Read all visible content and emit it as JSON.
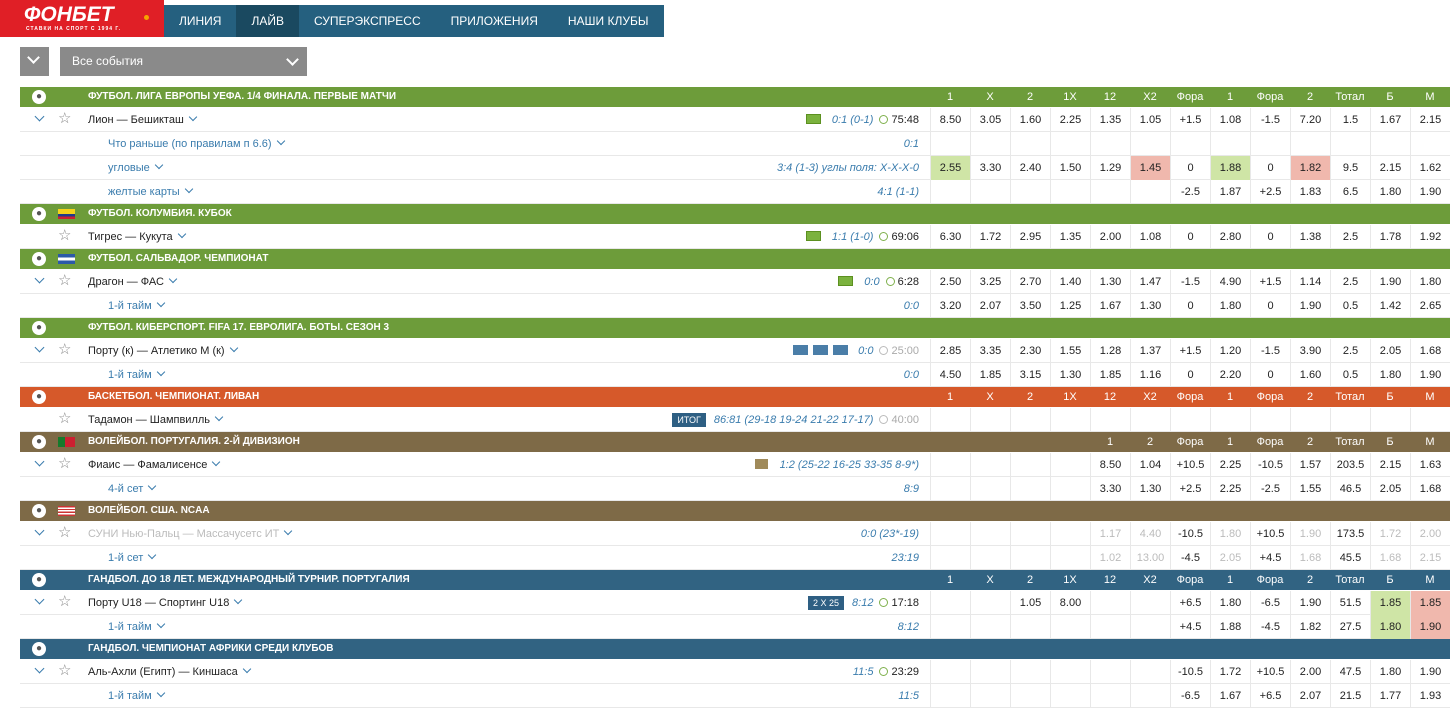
{
  "brand": {
    "name": "ФОНБЕТ",
    "slogan": "СТАВКИ НА СПОРТ С 1994 Г."
  },
  "nav": [
    "ЛИНИЯ",
    "ЛАЙВ",
    "СУПЕРЭКСПРЕСС",
    "ПРИЛОЖЕНИЯ",
    "НАШИ КЛУБЫ"
  ],
  "nav_active": 1,
  "filter": {
    "label": "Все события"
  },
  "colors": {
    "football": "#6d9c3a",
    "basketball": "#d6592a",
    "volleyball": "#7e6a47",
    "handball": "#316382",
    "highlight_green": "#cfe5a6",
    "highlight_red": "#f0b8ad"
  },
  "blocks": [
    {
      "title": "ФУТБОЛ. ЛИГА ЕВРОПЫ УЕФА. 1/4 ФИНАЛА. ПЕРВЫЕ МАТЧИ",
      "color": "green",
      "icon": "football-icon",
      "flag": "",
      "headers": [
        "1",
        "X",
        "2",
        "1X",
        "12",
        "X2",
        "Фора",
        "1",
        "Фора",
        "2",
        "Тотал",
        "Б",
        "М"
      ],
      "rows": [
        {
          "kind": "event",
          "toggle": true,
          "name": "Лион — Бешикташ",
          "icon": "field",
          "score": "0:1 (0-1)",
          "time": "75:48",
          "odds": [
            "8.50",
            "3.05",
            "1.60",
            "2.25",
            "1.35",
            "1.05",
            "+1.5",
            "1.08",
            "-1.5",
            "7.20",
            "1.5",
            "1.67",
            "2.15"
          ]
        },
        {
          "kind": "sub",
          "name": "Что раньше (по правилам п 6.6)",
          "score": "0:1",
          "odds": [
            "",
            "",
            "",
            "",
            "",
            "",
            "",
            "",
            "",
            "",
            "",
            "",
            ""
          ]
        },
        {
          "kind": "sub",
          "name": "угловые",
          "score": "3:4 (1-3) углы поля: X-X-X-0",
          "odds": [
            "2.55",
            "3.30",
            "2.40",
            "1.50",
            "1.29",
            "1.45",
            "0",
            "1.88",
            "0",
            "1.82",
            "9.5",
            "2.15",
            "1.62"
          ],
          "hl": {
            "0": "g",
            "5": "r",
            "7": "g",
            "9": "r"
          }
        },
        {
          "kind": "sub",
          "name": "желтые карты",
          "score": "4:1 (1-1)",
          "odds": [
            "",
            "",
            "",
            "",
            "",
            "",
            "-2.5",
            "1.87",
            "+2.5",
            "1.83",
            "6.5",
            "1.80",
            "1.90"
          ]
        }
      ]
    },
    {
      "title": "ФУТБОЛ. КОЛУМБИЯ. КУБОК",
      "color": "green",
      "icon": "football-icon",
      "flag": "colombia",
      "headers": [],
      "rows": [
        {
          "kind": "event",
          "toggle": false,
          "name": "Тигрес — Кукута",
          "icon": "field",
          "score": "1:1 (1-0)",
          "time": "69:06",
          "odds": [
            "6.30",
            "1.72",
            "2.95",
            "1.35",
            "2.00",
            "1.08",
            "0",
            "2.80",
            "0",
            "1.38",
            "2.5",
            "1.78",
            "1.92"
          ]
        }
      ]
    },
    {
      "title": "ФУТБОЛ. САЛЬВАДОР. ЧЕМПИОНАТ",
      "color": "green",
      "icon": "football-icon",
      "flag": "salvador",
      "headers": [],
      "rows": [
        {
          "kind": "event",
          "toggle": true,
          "name": "Драгон — ФАС",
          "icon": "field",
          "score": "0:0",
          "time": "6:28",
          "odds": [
            "2.50",
            "3.25",
            "2.70",
            "1.40",
            "1.30",
            "1.47",
            "-1.5",
            "4.90",
            "+1.5",
            "1.14",
            "2.5",
            "1.90",
            "1.80"
          ]
        },
        {
          "kind": "sub",
          "name": "1-й тайм",
          "score": "0:0",
          "odds": [
            "3.20",
            "2.07",
            "3.50",
            "1.25",
            "1.67",
            "1.30",
            "0",
            "1.80",
            "0",
            "1.90",
            "0.5",
            "1.42",
            "2.65"
          ]
        }
      ]
    },
    {
      "title": "ФУТБОЛ. КИБЕРСПОРТ. FIFA 17. ЕВРОЛИГА. БОТЫ. СЕЗОН 3",
      "color": "green",
      "icon": "football-icon",
      "flag": "",
      "headers": [],
      "rows": [
        {
          "kind": "event",
          "toggle": true,
          "name": "Порту (к) — Атлетико М (к)",
          "icon": "screens",
          "score": "0:0",
          "time": "25:00",
          "timeDim": true,
          "odds": [
            "2.85",
            "3.35",
            "2.30",
            "1.55",
            "1.28",
            "1.37",
            "+1.5",
            "1.20",
            "-1.5",
            "3.90",
            "2.5",
            "2.05",
            "1.68"
          ]
        },
        {
          "kind": "sub",
          "name": "1-й тайм",
          "score": "0:0",
          "odds": [
            "4.50",
            "1.85",
            "3.15",
            "1.30",
            "1.85",
            "1.16",
            "0",
            "2.20",
            "0",
            "1.60",
            "0.5",
            "1.80",
            "1.90"
          ]
        }
      ]
    },
    {
      "title": "БАСКЕТБОЛ. ЧЕМПИОНАТ. ЛИВАН",
      "color": "orange",
      "icon": "basketball-icon",
      "flag": "",
      "headers": [
        "1",
        "X",
        "2",
        "1X",
        "12",
        "X2",
        "Фора",
        "1",
        "Фора",
        "2",
        "Тотал",
        "Б",
        "М"
      ],
      "rows": [
        {
          "kind": "event",
          "toggle": false,
          "name": "Тадамон — Шампвилль",
          "icon": "badge",
          "badge": "ИТОГ",
          "score": "86:81 (29-18 19-24 21-22 17-17)",
          "time": "40:00",
          "timeDim": true,
          "odds": [
            "",
            "",
            "",
            "",
            "",
            "",
            "",
            "",
            "",
            "",
            "",
            "",
            ""
          ]
        }
      ]
    },
    {
      "title": "ВОЛЕЙБОЛ. ПОРТУГАЛИЯ. 2-Й ДИВИЗИОН",
      "color": "brown",
      "icon": "volleyball-icon",
      "flag": "portugal",
      "headers": [
        "",
        "",
        "",
        "",
        "1",
        "2",
        "Фора",
        "1",
        "Фора",
        "2",
        "Тотал",
        "Б",
        "М"
      ],
      "rows": [
        {
          "kind": "event",
          "toggle": true,
          "name": "Фиаис — Фамалисенсе",
          "icon": "vb",
          "score": "1:2 (25-22 16-25 33-35 8-9*)",
          "time": "",
          "odds": [
            "",
            "",
            "",
            "",
            "8.50",
            "1.04",
            "+10.5",
            "2.25",
            "-10.5",
            "1.57",
            "203.5",
            "2.15",
            "1.63"
          ]
        },
        {
          "kind": "sub",
          "name": "4-й сет",
          "score": "8:9",
          "odds": [
            "",
            "",
            "",
            "",
            "3.30",
            "1.30",
            "+2.5",
            "2.25",
            "-2.5",
            "1.55",
            "46.5",
            "2.05",
            "1.68"
          ]
        }
      ]
    },
    {
      "title": "ВОЛЕЙБОЛ. США. NCAA",
      "color": "brown",
      "icon": "volleyball-icon",
      "flag": "usa",
      "headers": [],
      "rows": [
        {
          "kind": "event",
          "toggle": true,
          "dim": true,
          "name": "СУНИ Нью-Пальц — Массачусетс ИТ",
          "icon": "",
          "score": "0:0 (23*-19)",
          "time": "",
          "odds": [
            "",
            "",
            "",
            "",
            "1.17",
            "4.40",
            "-10.5",
            "1.80",
            "+10.5",
            "1.90",
            "173.5",
            "1.72",
            "2.00"
          ],
          "dimIdx": [
            4,
            5,
            7,
            9,
            11,
            12
          ]
        },
        {
          "kind": "sub",
          "name": "1-й сет",
          "score": "23:19",
          "odds": [
            "",
            "",
            "",
            "",
            "1.02",
            "13.00",
            "-4.5",
            "2.05",
            "+4.5",
            "1.68",
            "45.5",
            "1.68",
            "2.15"
          ],
          "dimIdx": [
            4,
            5,
            7,
            9,
            11,
            12
          ]
        }
      ]
    },
    {
      "title": "ГАНДБОЛ. ДО 18 ЛЕТ. МЕЖДУНАРОДНЫЙ ТУРНИР. ПОРТУГАЛИЯ",
      "color": "blue",
      "icon": "handball-icon",
      "flag": "",
      "headers": [
        "1",
        "X",
        "2",
        "1X",
        "12",
        "X2",
        "Фора",
        "1",
        "Фора",
        "2",
        "Тотал",
        "Б",
        "М"
      ],
      "rows": [
        {
          "kind": "event",
          "toggle": true,
          "name": "Порту U18 — Спортинг U18",
          "icon": "badge",
          "badge": "2 X 25",
          "score": "8:12",
          "time": "17:18",
          "odds": [
            "",
            "",
            "1.05",
            "8.00",
            "",
            "",
            "+6.5",
            "1.80",
            "-6.5",
            "1.90",
            "51.5",
            "1.85",
            "1.85"
          ],
          "hl": {
            "11": "g",
            "12": "r"
          }
        },
        {
          "kind": "sub",
          "name": "1-й тайм",
          "score": "8:12",
          "odds": [
            "",
            "",
            "",
            "",
            "",
            "",
            "+4.5",
            "1.88",
            "-4.5",
            "1.82",
            "27.5",
            "1.80",
            "1.90"
          ],
          "hl": {
            "11": "g",
            "12": "r"
          }
        }
      ]
    },
    {
      "title": "ГАНДБОЛ. ЧЕМПИОНАТ АФРИКИ СРЕДИ КЛУБОВ",
      "color": "blue",
      "icon": "handball-icon",
      "flag": "",
      "headers": [],
      "rows": [
        {
          "kind": "event",
          "toggle": true,
          "name": "Аль-Ахли (Египт) — Киншаса",
          "icon": "",
          "score": "11:5",
          "time": "23:29",
          "odds": [
            "",
            "",
            "",
            "",
            "",
            "",
            "-10.5",
            "1.72",
            "+10.5",
            "2.00",
            "47.5",
            "1.80",
            "1.90"
          ]
        },
        {
          "kind": "sub",
          "name": "1-й тайм",
          "score": "11:5",
          "odds": [
            "",
            "",
            "",
            "",
            "",
            "",
            "-6.5",
            "1.67",
            "+6.5",
            "2.07",
            "21.5",
            "1.77",
            "1.93"
          ]
        }
      ]
    }
  ]
}
